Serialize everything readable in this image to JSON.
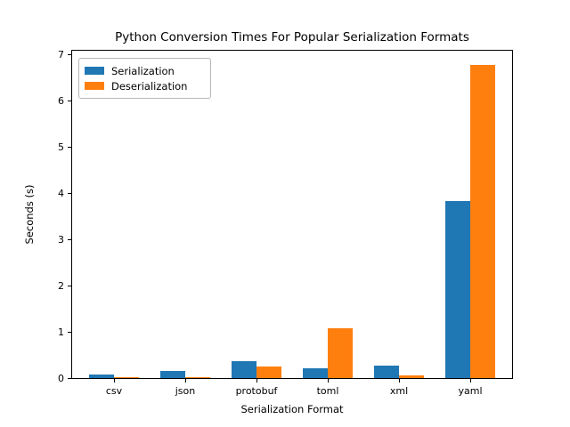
{
  "chart_data": {
    "type": "bar",
    "title": "Python Conversion Times For Popular Serialization Formats",
    "xlabel": "Serialization Format",
    "ylabel": "Seconds (s)",
    "categories": [
      "csv",
      "json",
      "protobuf",
      "toml",
      "xml",
      "yaml"
    ],
    "series": [
      {
        "name": "Serialization",
        "color": "#1f77b4",
        "values": [
          0.08,
          0.16,
          0.37,
          0.22,
          0.27,
          3.82
        ]
      },
      {
        "name": "Deserialization",
        "color": "#ff7f0e",
        "values": [
          0.02,
          0.02,
          0.25,
          1.07,
          0.05,
          6.78
        ]
      }
    ],
    "ylim": [
      0,
      7.12
    ],
    "yticks": [
      0,
      1,
      2,
      3,
      4,
      5,
      6,
      7
    ],
    "bar_width": 0.35,
    "grid": false,
    "legend_position": "upper left",
    "spine_color": "#000000",
    "background_color": "#ffffff"
  }
}
